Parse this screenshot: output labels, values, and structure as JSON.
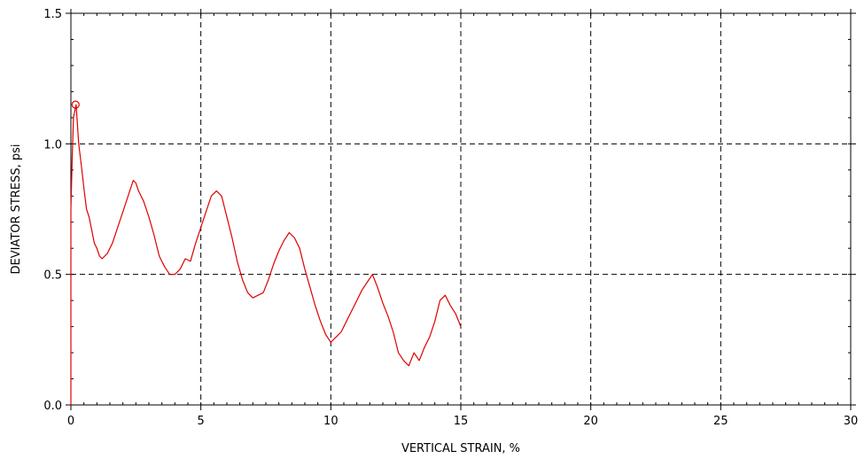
{
  "chart_data": {
    "type": "line",
    "title": "",
    "xlabel": "VERTICAL STRAIN, %",
    "ylabel": "DEVIATOR STRESS, psi",
    "xlim": [
      0,
      30
    ],
    "ylim": [
      0,
      1.5
    ],
    "x_ticks": [
      "0",
      "5",
      "10",
      "15",
      "20",
      "25",
      "30"
    ],
    "y_ticks": [
      "0.0",
      "0.5",
      "1.0",
      "1.5"
    ],
    "grid": true,
    "series": [
      {
        "color": "#e00000",
        "x": [
          0.0,
          0.0,
          0.05,
          0.1,
          0.2,
          0.3,
          0.4,
          0.5,
          0.6,
          0.7,
          0.8,
          0.9,
          1.0,
          1.1,
          1.2,
          1.4,
          1.6,
          1.8,
          2.0,
          2.2,
          2.4,
          2.5,
          2.6,
          2.8,
          3.0,
          3.2,
          3.4,
          3.6,
          3.8,
          4.0,
          4.2,
          4.4,
          4.6,
          4.8,
          5.0,
          5.2,
          5.4,
          5.6,
          5.8,
          6.0,
          6.2,
          6.4,
          6.6,
          6.8,
          7.0,
          7.2,
          7.4,
          7.6,
          7.8,
          8.0,
          8.2,
          8.4,
          8.6,
          8.8,
          9.0,
          9.2,
          9.4,
          9.6,
          9.8,
          10.0,
          10.2,
          10.4,
          10.6,
          10.8,
          11.0,
          11.2,
          11.4,
          11.6,
          11.8,
          12.0,
          12.2,
          12.4,
          12.6,
          12.8,
          13.0,
          13.2,
          13.4,
          13.6,
          13.8,
          14.0,
          14.2,
          14.4,
          14.6,
          14.8,
          15.0
        ],
        "y": [
          0.0,
          0.75,
          0.95,
          1.1,
          1.15,
          1.0,
          0.92,
          0.83,
          0.75,
          0.72,
          0.67,
          0.62,
          0.6,
          0.57,
          0.56,
          0.58,
          0.62,
          0.68,
          0.74,
          0.8,
          0.86,
          0.85,
          0.82,
          0.78,
          0.72,
          0.65,
          0.57,
          0.53,
          0.5,
          0.5,
          0.52,
          0.56,
          0.55,
          0.62,
          0.68,
          0.74,
          0.8,
          0.82,
          0.8,
          0.72,
          0.64,
          0.55,
          0.48,
          0.43,
          0.41,
          0.42,
          0.43,
          0.48,
          0.54,
          0.59,
          0.63,
          0.66,
          0.64,
          0.6,
          0.52,
          0.45,
          0.38,
          0.32,
          0.27,
          0.24,
          0.26,
          0.28,
          0.32,
          0.36,
          0.4,
          0.44,
          0.47,
          0.5,
          0.45,
          0.39,
          0.34,
          0.28,
          0.2,
          0.17,
          0.15,
          0.2,
          0.17,
          0.22,
          0.26,
          0.32,
          0.4,
          0.42,
          0.38,
          0.35,
          0.3
        ]
      }
    ],
    "peak_marker": {
      "x": 0.18,
      "y": 1.15
    }
  }
}
